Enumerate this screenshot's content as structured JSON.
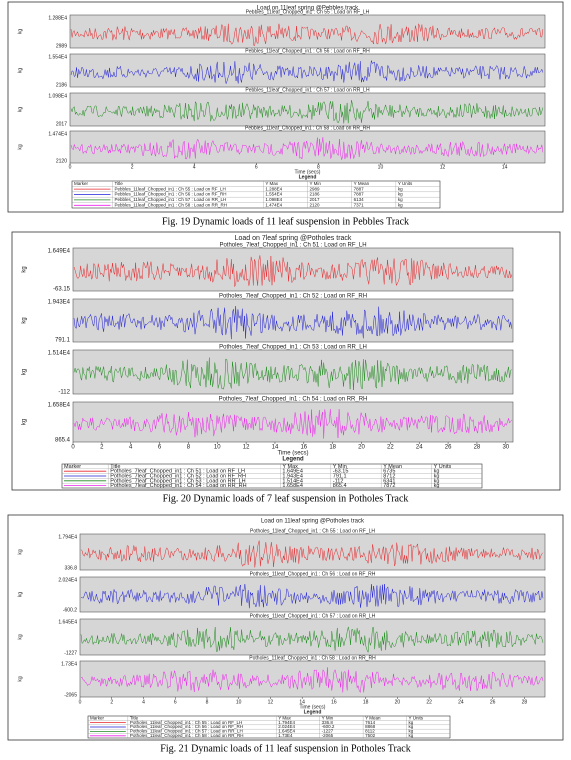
{
  "figures": [
    {
      "title": "Load on 11leaf spring @Pebbles track",
      "ylabel": "kg",
      "xlabel": "Time (secs)",
      "legend_title": "Legend",
      "xticks": [
        0,
        2,
        4,
        6,
        8,
        10,
        12,
        14
      ],
      "plots": [
        {
          "label": "Pebbles_11leaf_Chopped_in1 : Ch 55 : Load on RF_LH",
          "ymax": "1.288E4",
          "ymin": "2989"
        },
        {
          "label": "Pebbles_11leaf_Chopped_in1 : Ch 56 : Load on RF_RH",
          "ymax": "1.554E4",
          "ymin": "2186"
        },
        {
          "label": "Pebbles_11leaf_Chopped_in1 : Ch 57 : Load on RR_LH",
          "ymax": "1.098E4",
          "ymin": "2017"
        },
        {
          "label": "Pebbles_11leaf_Chopped_in1 : Ch 58 : Load on RR_RH",
          "ymax": "1.474E4",
          "ymin": "2120"
        }
      ],
      "legend": {
        "headers": [
          "Marker",
          "Title",
          "Y Max",
          "Y Min",
          "Y Mean",
          "Y Units"
        ],
        "rows": [
          [
            "Pebbles_11leaf_Chopped_in1 : Ch 55 : Load on RF_LH",
            "1.288E4",
            "2989",
            "7887",
            "kg"
          ],
          [
            "Pebbles_11leaf_Chopped_in1 : Ch 56 : Load on RF_RH",
            "1.554E4",
            "2186",
            "7887",
            "kg"
          ],
          [
            "Pebbles_11leaf_Chopped_in1 : Ch 57 : Load on RR_LH",
            "1.098E4",
            "2017",
            "6134",
            "kg"
          ],
          [
            "Pebbles_11leaf_Chopped_in1 : Ch 58 : Load on RR_RH",
            "1.474E4",
            "2120",
            "7371",
            "kg"
          ]
        ]
      },
      "caption": "Fig. 19 Dynamic loads of 11 leaf suspension in Pebbles Track"
    },
    {
      "title": "Load on 7leaf spring @Potholes track",
      "ylabel": "kg",
      "xlabel": "Time (secs)",
      "legend_title": "Legend",
      "xticks": [
        0,
        2,
        4,
        6,
        8,
        10,
        12,
        14,
        16,
        18,
        20,
        22,
        24,
        26,
        28,
        30
      ],
      "plots": [
        {
          "label": "Potholes_7leaf_Chopped_in1 : Ch 51 : Load on RF_LH",
          "ymax": "1.649E4",
          "ymin": "-63.15"
        },
        {
          "label": "Potholes_7leaf_Chopped_in1 : Ch 52 : Load on RF_RH",
          "ymax": "1.943E4",
          "ymin": "791.1"
        },
        {
          "label": "Potholes_7leaf_Chopped_in1 : Ch 53 : Load on RR_LH",
          "ymax": "1.514E4",
          "ymin": "-112"
        },
        {
          "label": "Potholes_7leaf_Chopped_in1 : Ch 54 : Load on RR_RH",
          "ymax": "1.658E4",
          "ymin": "865.4"
        }
      ],
      "legend": {
        "headers": [
          "Marker",
          "Title",
          "Y Max",
          "Y Min",
          "Y Mean",
          "Y Units"
        ],
        "rows": [
          [
            "Potholes_7leaf_Chopped_in1 : Ch 51 : Load on RF_LH",
            "1.649E4",
            "-63.15",
            "6735",
            "kg"
          ],
          [
            "Potholes_7leaf_Chopped_in1 : Ch 52 : Load on RF_RH",
            "1.943E4",
            "791.1",
            "8712",
            "kg"
          ],
          [
            "Potholes_7leaf_Chopped_in1 : Ch 53 : Load on RR_LH",
            "1.514E4",
            "-112",
            "6341",
            "kg"
          ],
          [
            "Potholes_7leaf_Chopped_in1 : Ch 54 : Load on RR_RH",
            "1.658E4",
            "865.4",
            "7872",
            "kg"
          ]
        ]
      },
      "caption": "Fig. 20 Dynamic loads of 7 leaf suspension in Potholes Track"
    },
    {
      "title": "Load on 11leaf spring @Potholes track",
      "ylabel": "kg",
      "xlabel": "Time (secs)",
      "legend_title": "Legend",
      "xticks": [
        0,
        2,
        4,
        6,
        8,
        10,
        12,
        14,
        16,
        18,
        20,
        22,
        24,
        26,
        28
      ],
      "plots": [
        {
          "label": "Potholes_11leaf_Chopped_in1 : Ch 55 : Load on RF_LH",
          "ymax": "1.794E4",
          "ymin": "336.8"
        },
        {
          "label": "Potholes_11leaf_Chopped_in1 : Ch 56 : Load on RF_RH",
          "ymax": "2.024E4",
          "ymin": "-600.2"
        },
        {
          "label": "Potholes_11leaf_Chopped_in1 : Ch 57 : Load on RR_LH",
          "ymax": "1.645E4",
          "ymin": "-1227"
        },
        {
          "label": "Potholes_11leaf_Chopped_in1 : Ch 58 : Load on RR_RH",
          "ymax": "1.73E4",
          "ymin": "-2065"
        }
      ],
      "legend": {
        "headers": [
          "Marker",
          "Title",
          "Y Max",
          "Y Min",
          "Y Mean",
          "Y Units"
        ],
        "rows": [
          [
            "Potholes_11leaf_Chopped_in1 : Ch 55 : Load on RF_LH",
            "1.794E4",
            "336.8",
            "7614",
            "kg"
          ],
          [
            "Potholes_11leaf_Chopped_in1 : Ch 56 : Load on RF_RH",
            "2.024E4",
            "-600.2",
            "8868",
            "kg"
          ],
          [
            "Potholes_11leaf_Chopped_in1 : Ch 57 : Load on RR_LH",
            "1.645E4",
            "-1227",
            "8112",
            "kg"
          ],
          [
            "Potholes_11leaf_Chopped_in1 : Ch 58 : Load on RR_RH",
            "1.73E4",
            "-2065",
            "7502",
            "kg"
          ]
        ]
      },
      "caption": "Fig. 21 Dynamic loads of 11 leaf suspension in Potholes Track"
    }
  ]
}
